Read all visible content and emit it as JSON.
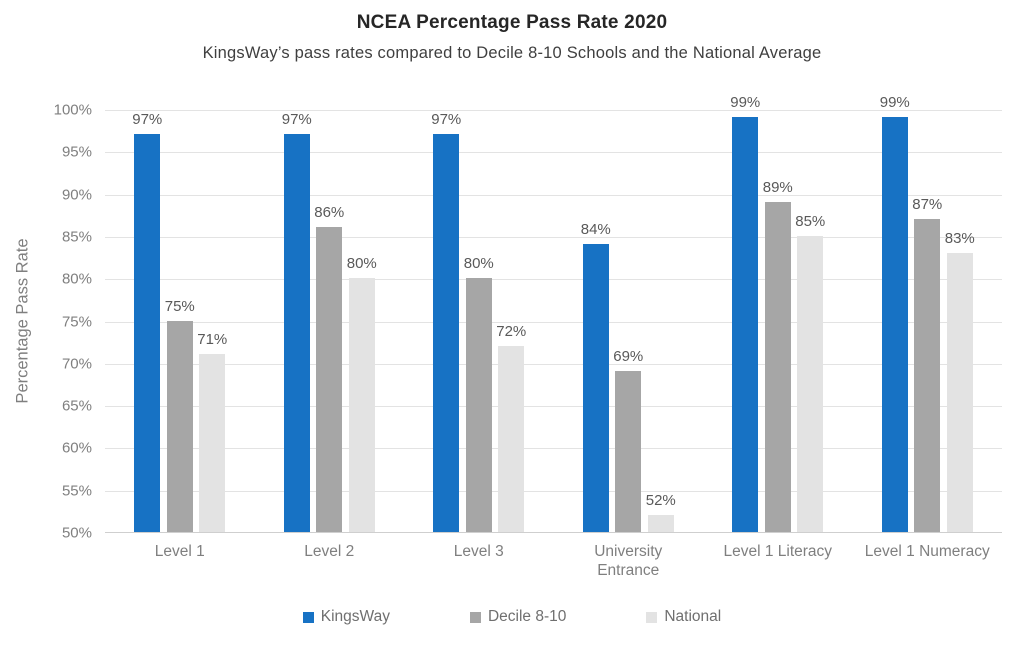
{
  "chart_data": {
    "type": "bar",
    "title": "NCEA Percentage Pass Rate 2020",
    "subtitle": "KingsWay’s pass rates compared to Decile 8-10 Schools and the National Average",
    "xlabel": "",
    "ylabel": "Percentage Pass Rate",
    "ylim": [
      50,
      100
    ],
    "ytick_step": 5,
    "ytick_suffix": "%",
    "grid": true,
    "legend_position": "bottom",
    "value_label_suffix": "%",
    "categories": [
      "Level 1",
      "Level 2",
      "Level 3",
      "University\nEntrance",
      "Level 1 Literacy",
      "Level 1 Numeracy"
    ],
    "series": [
      {
        "name": "KingsWay",
        "color": "#1772C4",
        "values": [
          97,
          97,
          97,
          84,
          99,
          99
        ]
      },
      {
        "name": "Decile 8-10",
        "color": "#A6A6A6",
        "values": [
          75,
          86,
          80,
          69,
          89,
          87
        ]
      },
      {
        "name": "National",
        "color": "#E3E3E3",
        "values": [
          71,
          80,
          72,
          52,
          85,
          83
        ]
      }
    ]
  },
  "colors": {
    "series_blue": "#1772C4",
    "series_gray": "#A6A6A6",
    "series_light_gray": "#E3E3E3",
    "gridline": "#E3E3E3",
    "axis_text": "#7F7F7F",
    "data_label_text": "#595959",
    "title_text": "#262626"
  }
}
